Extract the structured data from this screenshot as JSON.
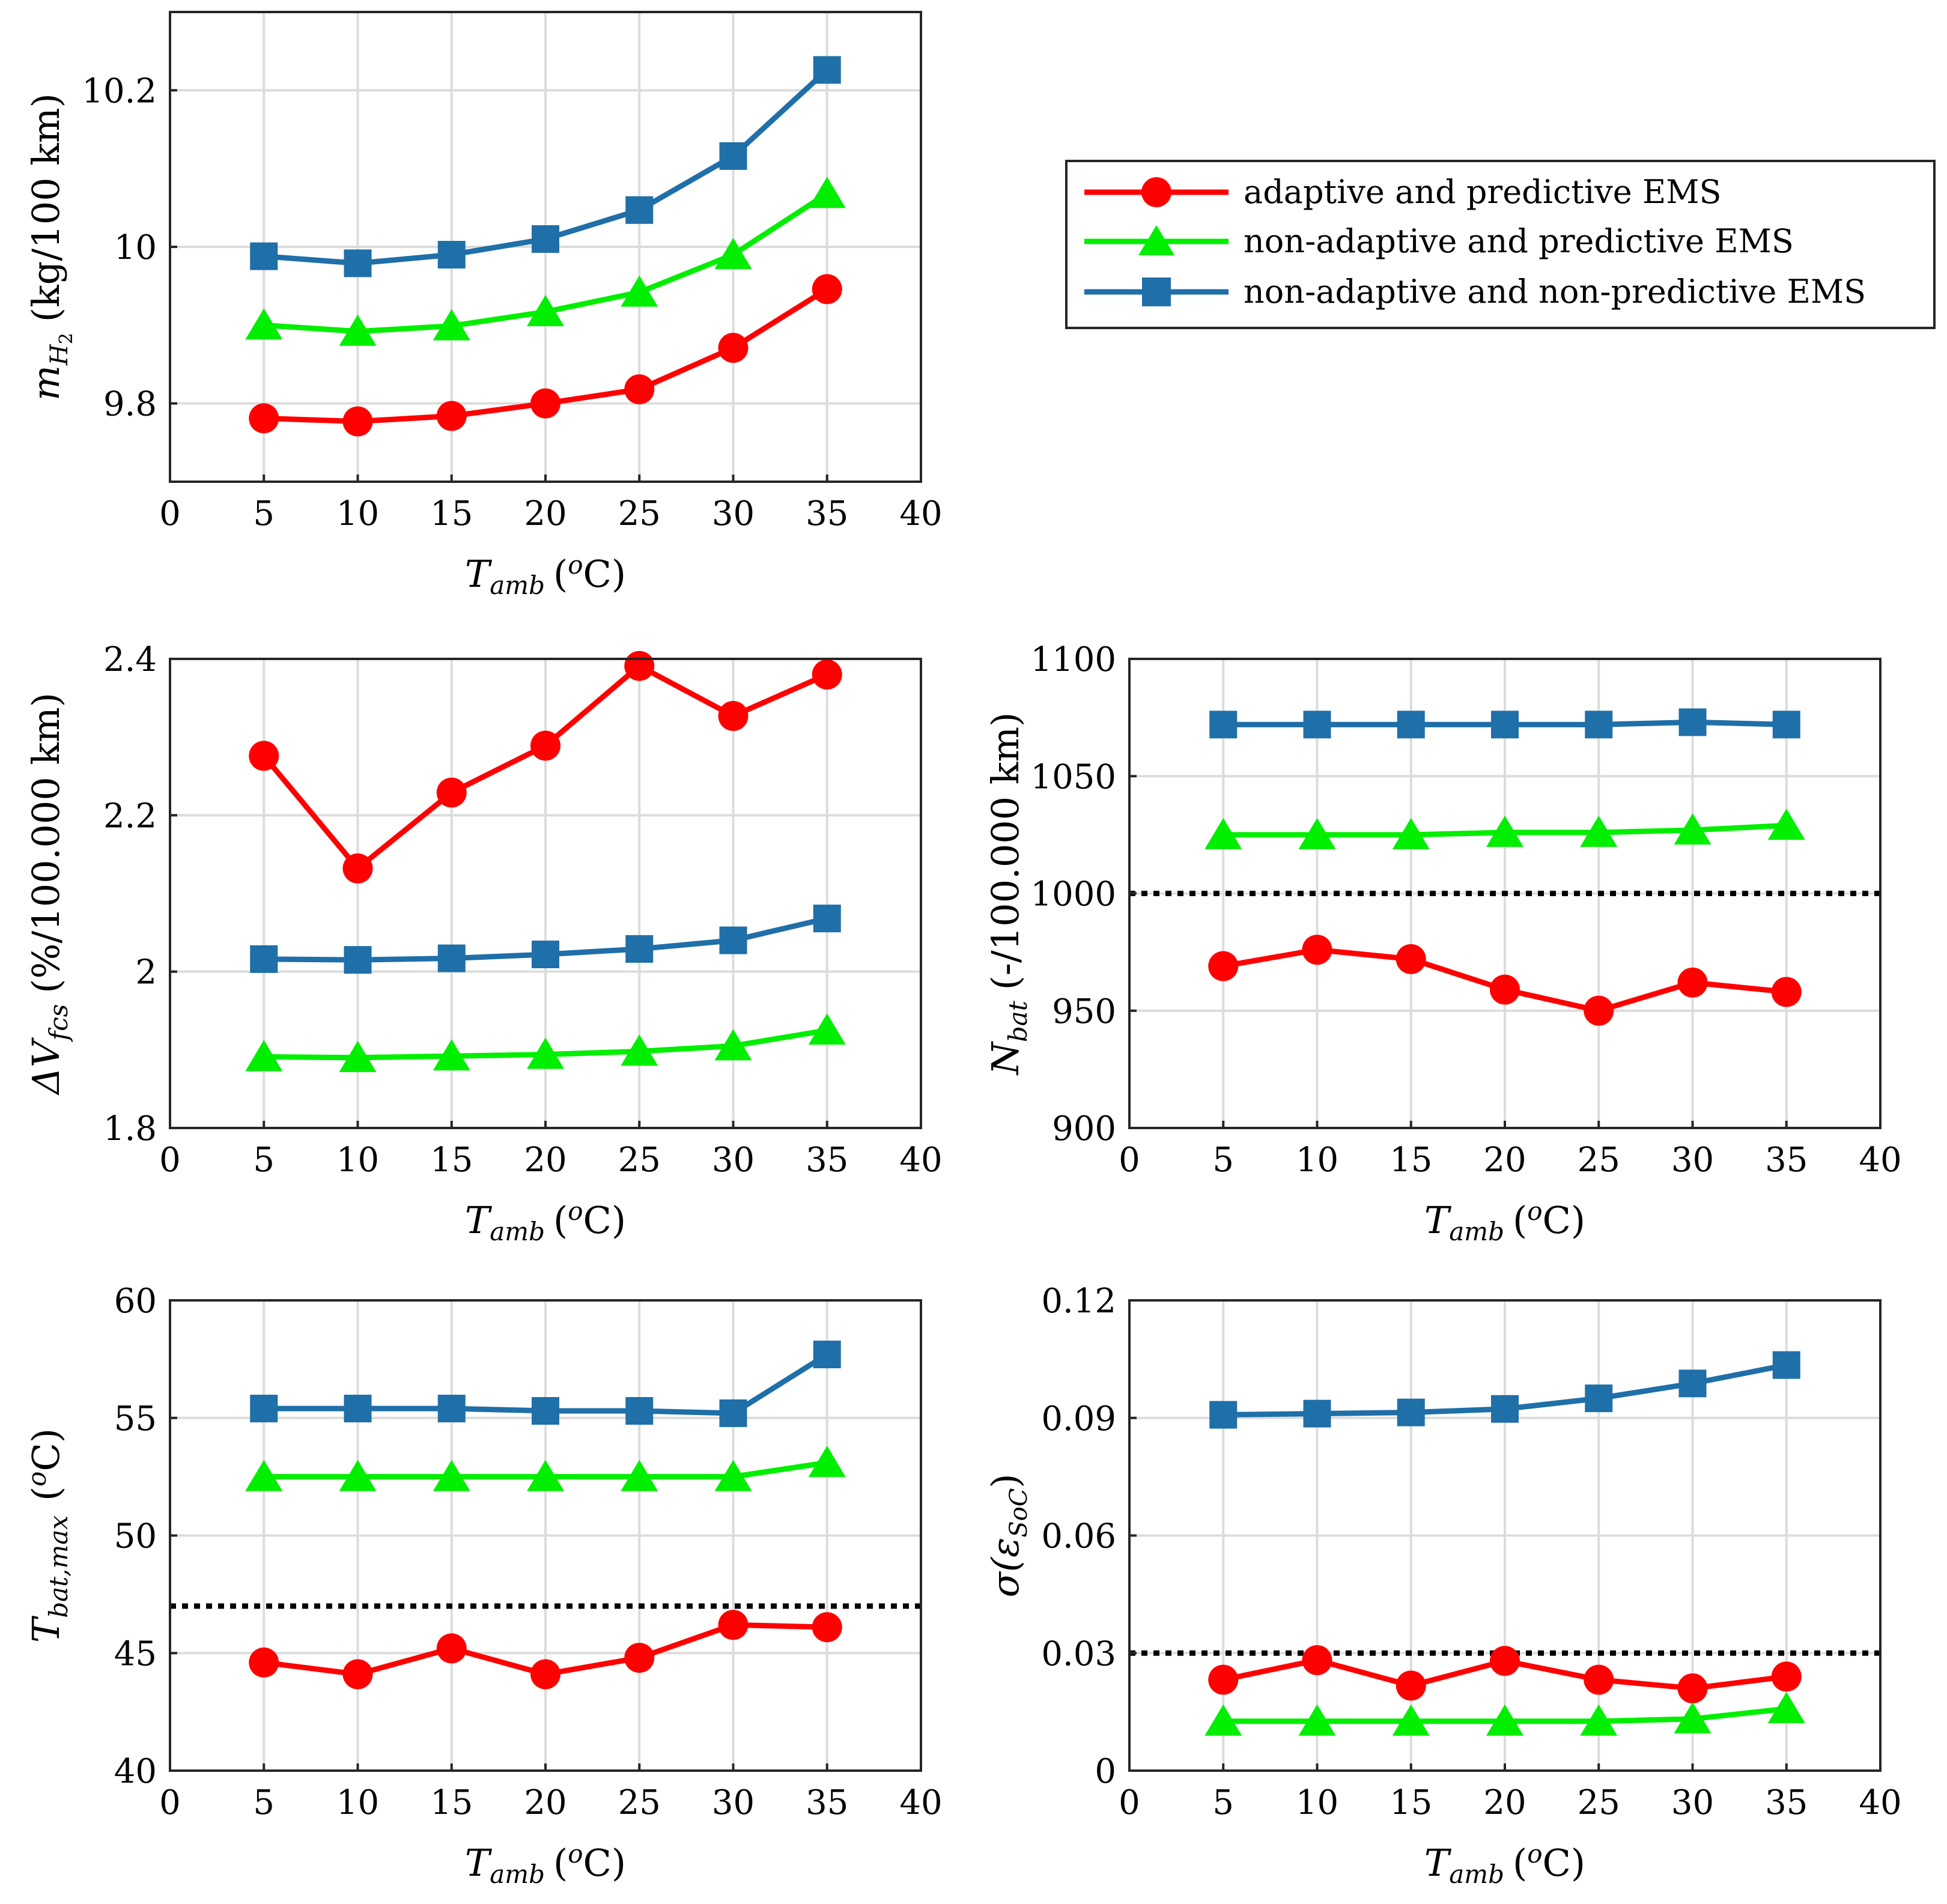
{
  "colors": {
    "adaptive_predictive": "#ff0000",
    "nonadaptive_predictive": "#00ee00",
    "nonadaptive_nonpredictive": "#1f6fa8"
  },
  "legend": {
    "entries": [
      {
        "label": "adaptive and predictive EMS",
        "marker": "circle",
        "color": "#ff0000"
      },
      {
        "label": "non-adaptive and predictive EMS",
        "marker": "triangle",
        "color": "#00ee00"
      },
      {
        "label": "non-adaptive and non-predictive EMS",
        "marker": "square",
        "color": "#1f6fa8"
      }
    ]
  },
  "chart_data": [
    {
      "id": "h2",
      "type": "line",
      "ylabel_parts": [
        "m",
        "H",
        "2",
        "(kg/100 km)"
      ],
      "xlabel_parts": [
        "T",
        "amb",
        "(",
        "o",
        "C)"
      ],
      "xlim": [
        0,
        40
      ],
      "ylim": [
        9.7,
        10.3
      ],
      "xticks": [
        0,
        5,
        10,
        15,
        20,
        25,
        30,
        35,
        40
      ],
      "yticks": [
        9.8,
        10,
        10.2
      ],
      "ytick_labels": [
        "9.8",
        "10",
        "10.2"
      ],
      "x": [
        5,
        10,
        15,
        20,
        25,
        30,
        35
      ],
      "series": [
        {
          "name": "adaptive and predictive EMS",
          "values": [
            9.781,
            9.777,
            9.784,
            9.8,
            9.818,
            9.871,
            9.946
          ]
        },
        {
          "name": "non-adaptive and predictive EMS",
          "values": [
            9.9,
            9.892,
            9.899,
            9.917,
            9.942,
            9.99,
            10.068
          ]
        },
        {
          "name": "non-adaptive and non-predictive EMS",
          "values": [
            9.988,
            9.979,
            9.99,
            10.01,
            10.047,
            10.116,
            10.226
          ]
        }
      ]
    },
    {
      "id": "dv",
      "type": "line",
      "ylabel_parts": [
        "ΔV",
        "fcs",
        "(%/100.000 km)"
      ],
      "xlabel_parts": [
        "T",
        "amb",
        "(",
        "o",
        "C)"
      ],
      "xlim": [
        0,
        40
      ],
      "ylim": [
        1.8,
        2.4
      ],
      "xticks": [
        0,
        5,
        10,
        15,
        20,
        25,
        30,
        35,
        40
      ],
      "yticks": [
        1.8,
        2.0,
        2.2,
        2.4
      ],
      "ytick_labels": [
        "1.8",
        "2",
        "2.2",
        "2.4"
      ],
      "x": [
        5,
        10,
        15,
        20,
        25,
        30,
        35
      ],
      "series": [
        {
          "name": "adaptive and predictive EMS",
          "values": [
            2.276,
            2.132,
            2.229,
            2.289,
            2.391,
            2.327,
            2.38
          ]
        },
        {
          "name": "non-adaptive and predictive EMS",
          "values": [
            1.891,
            1.89,
            1.892,
            1.894,
            1.898,
            1.905,
            1.925
          ]
        },
        {
          "name": "non-adaptive and non-predictive EMS",
          "values": [
            2.016,
            2.015,
            2.017,
            2.022,
            2.029,
            2.04,
            2.068
          ]
        }
      ]
    },
    {
      "id": "nbat",
      "type": "line",
      "ylabel_parts": [
        "N",
        "bat",
        "(-/100.000 km)"
      ],
      "xlabel_parts": [
        "T",
        "amb",
        "(",
        "o",
        "C)"
      ],
      "xlim": [
        0,
        40
      ],
      "ylim": [
        900,
        1100
      ],
      "xticks": [
        0,
        5,
        10,
        15,
        20,
        25,
        30,
        35,
        40
      ],
      "yticks": [
        900,
        950,
        1000,
        1050,
        1100
      ],
      "ytick_labels": [
        "900",
        "950",
        "1000",
        "1050",
        "1100"
      ],
      "x": [
        5,
        10,
        15,
        20,
        25,
        30,
        35
      ],
      "reference_line": 1000,
      "series": [
        {
          "name": "adaptive and predictive EMS",
          "values": [
            969,
            976,
            972,
            959,
            950,
            962,
            958
          ]
        },
        {
          "name": "non-adaptive and predictive EMS",
          "values": [
            1025,
            1025,
            1025,
            1026,
            1026,
            1027,
            1029
          ]
        },
        {
          "name": "non-adaptive and non-predictive EMS",
          "values": [
            1072,
            1072,
            1072,
            1072,
            1072,
            1073,
            1072
          ]
        }
      ]
    },
    {
      "id": "tbat",
      "type": "line",
      "ylabel_parts": [
        "T",
        "bat,max",
        "(",
        "o",
        "C)"
      ],
      "xlabel_parts": [
        "T",
        "amb",
        "(",
        "o",
        "C)"
      ],
      "xlim": [
        0,
        40
      ],
      "ylim": [
        40,
        60
      ],
      "xticks": [
        0,
        5,
        10,
        15,
        20,
        25,
        30,
        35,
        40
      ],
      "yticks": [
        40,
        45,
        50,
        55,
        60
      ],
      "ytick_labels": [
        "40",
        "45",
        "50",
        "55",
        "60"
      ],
      "x": [
        5,
        10,
        15,
        20,
        25,
        30,
        35
      ],
      "reference_line": 47,
      "series": [
        {
          "name": "adaptive and predictive EMS",
          "values": [
            44.6,
            44.1,
            45.2,
            44.1,
            44.8,
            46.2,
            46.1
          ]
        },
        {
          "name": "non-adaptive and predictive EMS",
          "values": [
            52.5,
            52.5,
            52.5,
            52.5,
            52.5,
            52.5,
            53.1
          ]
        },
        {
          "name": "non-adaptive and non-predictive EMS",
          "values": [
            55.4,
            55.4,
            55.4,
            55.3,
            55.3,
            55.2,
            57.7
          ]
        }
      ]
    },
    {
      "id": "soc",
      "type": "line",
      "ylabel_parts": [
        "σ(ε",
        "SoC",
        ")"
      ],
      "xlabel_parts": [
        "T",
        "amb",
        "(",
        "o",
        "C)"
      ],
      "xlim": [
        0,
        40
      ],
      "ylim": [
        0,
        0.12
      ],
      "xticks": [
        0,
        5,
        10,
        15,
        20,
        25,
        30,
        35,
        40
      ],
      "yticks": [
        0,
        0.03,
        0.06,
        0.09,
        0.12
      ],
      "ytick_labels": [
        "0",
        "0.03",
        "0.06",
        "0.09",
        "0.12"
      ],
      "x": [
        5,
        10,
        15,
        20,
        25,
        30,
        35
      ],
      "reference_line": 0.03,
      "series": [
        {
          "name": "adaptive and predictive EMS",
          "values": [
            0.0232,
            0.0282,
            0.0217,
            0.028,
            0.0232,
            0.021,
            0.024
          ]
        },
        {
          "name": "non-adaptive and predictive EMS",
          "values": [
            0.0126,
            0.0126,
            0.0126,
            0.0126,
            0.0126,
            0.0132,
            0.0158
          ]
        },
        {
          "name": "non-adaptive and non-predictive EMS",
          "values": [
            0.0908,
            0.0911,
            0.0914,
            0.0923,
            0.095,
            0.0988,
            0.1035
          ]
        }
      ]
    }
  ]
}
